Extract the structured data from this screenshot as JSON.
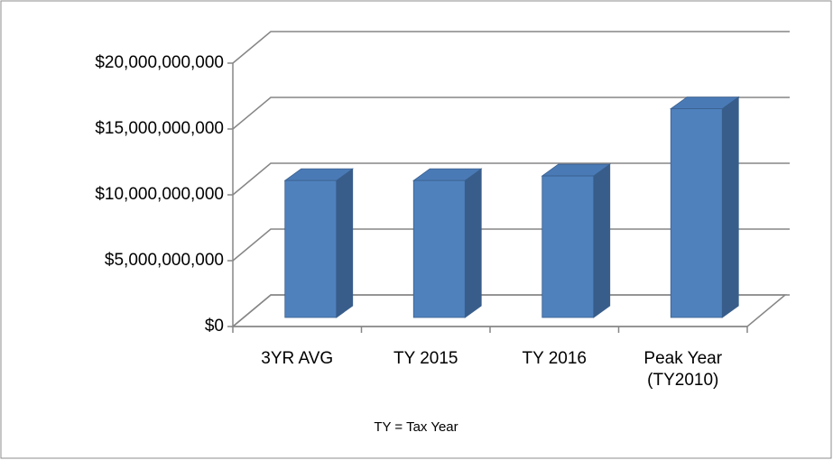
{
  "chart_data": {
    "type": "bar3d",
    "categories": [
      "3YR AVG",
      "TY 2015",
      "TY 2016",
      "Peak Year (TY2010)"
    ],
    "values": [
      10400000000,
      10400000000,
      10750000000,
      15850000000
    ],
    "color": "#4f81bd",
    "ylim": [
      0,
      20000000000
    ],
    "yticks": [
      {
        "value": 0,
        "label": "$0"
      },
      {
        "value": 5000000000,
        "label": "$5,000,000,000"
      },
      {
        "value": 10000000000,
        "label": "$10,000,000,000"
      },
      {
        "value": 15000000000,
        "label": "$15,000,000,000"
      },
      {
        "value": 20000000000,
        "label": "$20,000,000,000"
      }
    ],
    "grid": true,
    "annotation": "TY = Tax Year"
  }
}
